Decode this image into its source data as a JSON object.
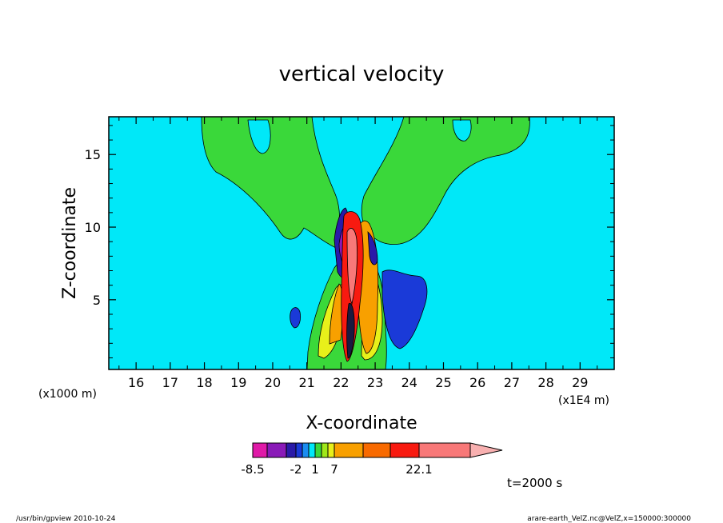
{
  "chart_data": {
    "type": "heatmap",
    "title": "vertical velocity",
    "xlabel": "X-coordinate",
    "ylabel": "Z-coordinate",
    "x_unit_left": "(x1000 m)",
    "x_unit_right": "(x1E4 m)",
    "xlim": [
      15.2,
      30.0
    ],
    "ylim": [
      0.2,
      17.6
    ],
    "x_ticks": [
      "16",
      "17",
      "18",
      "19",
      "20",
      "21",
      "22",
      "23",
      "24",
      "25",
      "26",
      "27",
      "28",
      "29"
    ],
    "y_ticks": [
      "5",
      "10",
      "15"
    ],
    "colorbar": {
      "labels": [
        "-8.5",
        "-2",
        "1",
        "7",
        "22.1"
      ],
      "colors": [
        "#e01aa8",
        "#8a1ab8",
        "#2a1aa8",
        "#1a3ad8",
        "#1a8cf0",
        "#00e8f8",
        "#3ad83a",
        "#a0e81a",
        "#e8f01a",
        "#f8a000",
        "#f86a00",
        "#f81a10",
        "#f87878",
        "#f8b0b0"
      ]
    },
    "annotation": "t=2000 s",
    "footer_left": "/usr/bin/gpview   2010-10-24",
    "footer_right": "arare-earth_VelZ.nc@VelZ,x=150000:300000"
  }
}
